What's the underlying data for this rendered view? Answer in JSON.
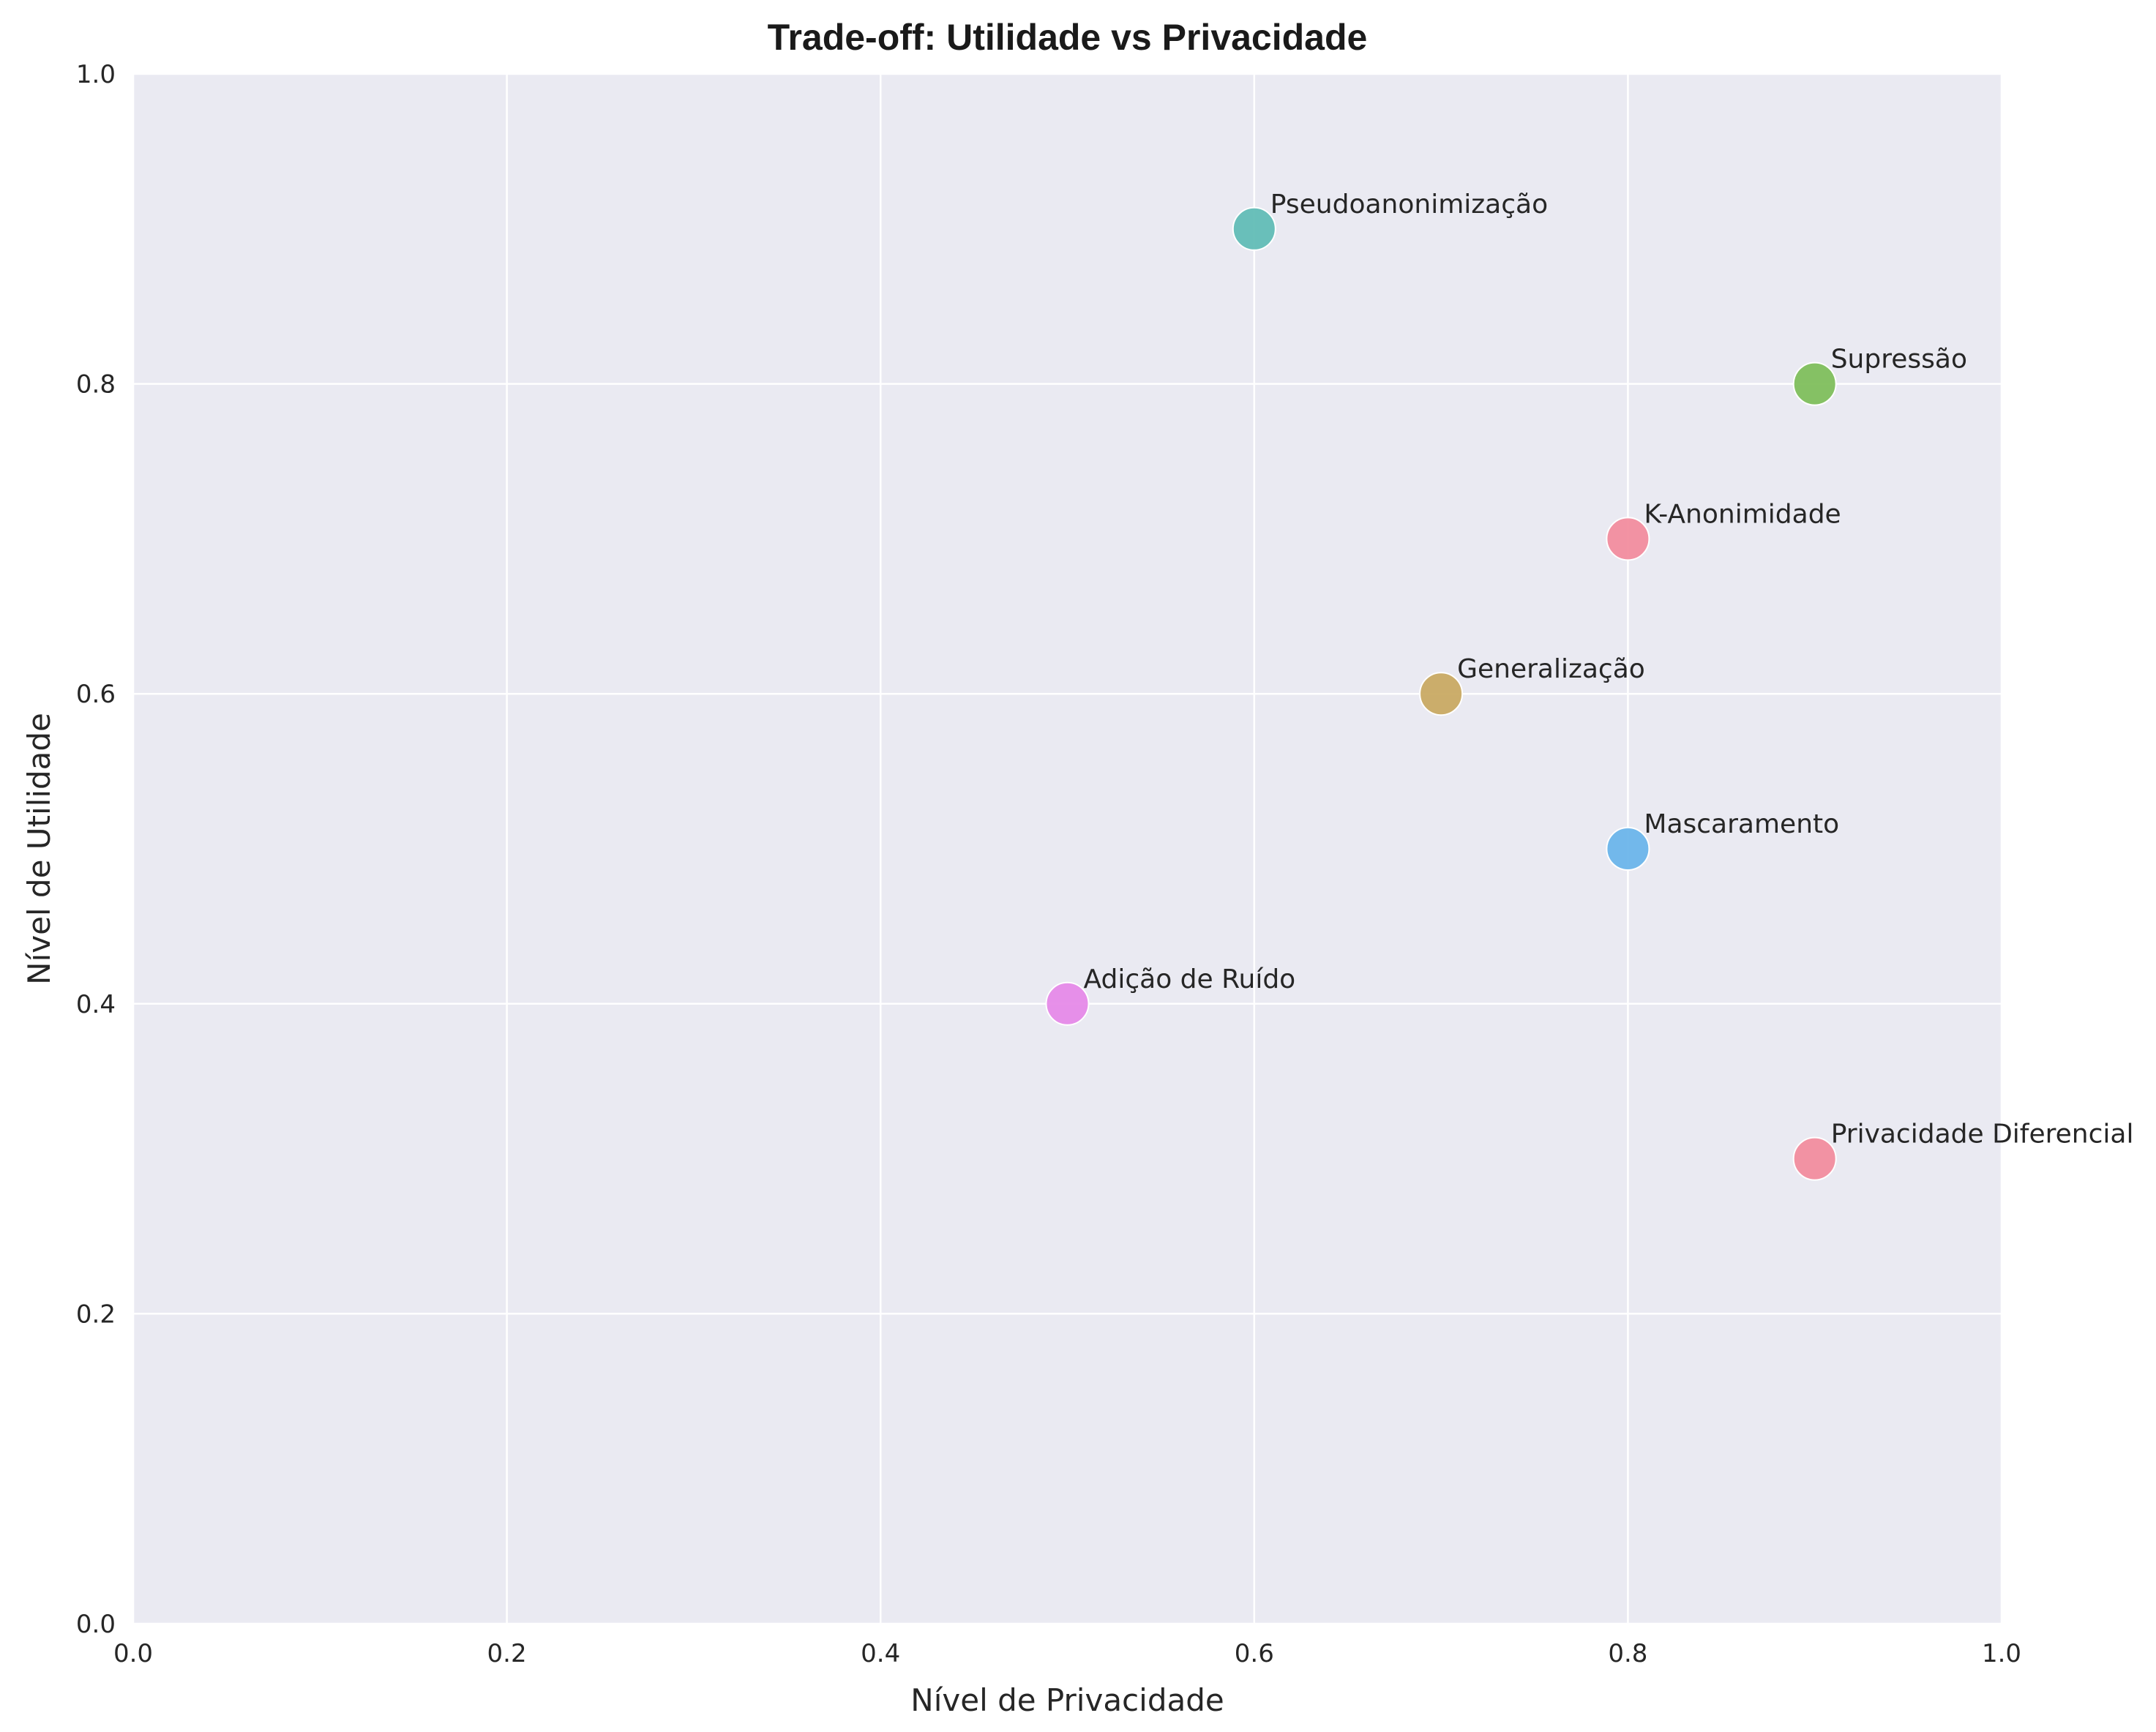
{
  "chart_data": {
    "type": "scatter",
    "title": "Trade-off: Utilidade vs Privacidade",
    "xlabel": "Nível de Privacidade",
    "ylabel": "Nível de Utilidade",
    "xlim": [
      0,
      1
    ],
    "ylim": [
      0,
      1
    ],
    "grid": true,
    "legend": "none",
    "xticks": [
      "0.0",
      "0.2",
      "0.4",
      "0.6",
      "0.8",
      "1.0"
    ],
    "yticks": [
      "0.0",
      "0.2",
      "0.4",
      "0.6",
      "0.8",
      "1.0"
    ],
    "points": [
      {
        "label": "K-Anonimidade",
        "x": 0.8,
        "y": 0.7,
        "color": "#f28d9e"
      },
      {
        "label": "Supressão",
        "x": 0.9,
        "y": 0.8,
        "color": "#7fbf5c"
      },
      {
        "label": "Generalização",
        "x": 0.7,
        "y": 0.6,
        "color": "#c9aa63"
      },
      {
        "label": "Pseudoanonimização",
        "x": 0.6,
        "y": 0.9,
        "color": "#62bdb6"
      },
      {
        "label": "Mascaramento",
        "x": 0.8,
        "y": 0.5,
        "color": "#6bb5ea"
      },
      {
        "label": "Adição de Ruído",
        "x": 0.5,
        "y": 0.4,
        "color": "#e68ae8"
      },
      {
        "label": "Privacidade Diferencial",
        "x": 0.9,
        "y": 0.3,
        "color": "#f28d9e"
      }
    ],
    "colors": {
      "plot_background": "#eaeaf2",
      "grid": "#ffffff"
    }
  }
}
